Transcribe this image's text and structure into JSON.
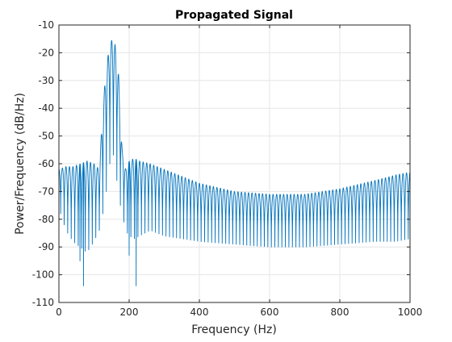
{
  "chart_data": {
    "type": "line",
    "title": "Propagated Signal",
    "xlabel": "Frequency (Hz)",
    "ylabel": "Power/Frequency (dB/Hz)",
    "xlim": [
      0,
      1000
    ],
    "ylim": [
      -110,
      -10
    ],
    "xticks": [
      0,
      200,
      400,
      600,
      800,
      1000
    ],
    "yticks": [
      -110,
      -100,
      -90,
      -80,
      -70,
      -60,
      -50,
      -40,
      -30,
      -20,
      -10
    ],
    "grid": true,
    "line_color": "#0072BD",
    "series": [
      {
        "description": "Ripple envelope: upper peak level and lower null level of the oscillating PSD (dB/Hz)",
        "x": [
          0,
          20,
          40,
          60,
          80,
          100,
          115,
          125,
          135,
          145,
          152,
          160,
          170,
          180,
          190,
          200,
          215,
          230,
          260,
          300,
          400,
          500,
          600,
          700,
          800,
          900,
          960,
          1000
        ],
        "upper": [
          -62,
          -61,
          -61,
          -60,
          -59,
          -60,
          -62,
          -40,
          -25,
          -17,
          -15,
          -17,
          -28,
          -55,
          -62,
          -59,
          -58,
          -59,
          -60,
          -62,
          -67,
          -70,
          -71,
          -71,
          -69,
          -66,
          -64,
          -63
        ],
        "lower": [
          -76,
          -84,
          -88,
          -90,
          -92,
          -88,
          -84,
          -78,
          -70,
          -60,
          -55,
          -60,
          -72,
          -78,
          -84,
          -86,
          -87,
          -86,
          -84,
          -86,
          -88,
          -89,
          -90,
          -90,
          -89,
          -88,
          -88,
          -87
        ]
      }
    ],
    "deep_nulls": [
      {
        "x": 70,
        "y": -104
      },
      {
        "x": 60,
        "y": -95
      },
      {
        "x": 218,
        "y": -104
      },
      {
        "x": 200,
        "y": -93
      }
    ],
    "ripple_spacing_hz": 10
  }
}
